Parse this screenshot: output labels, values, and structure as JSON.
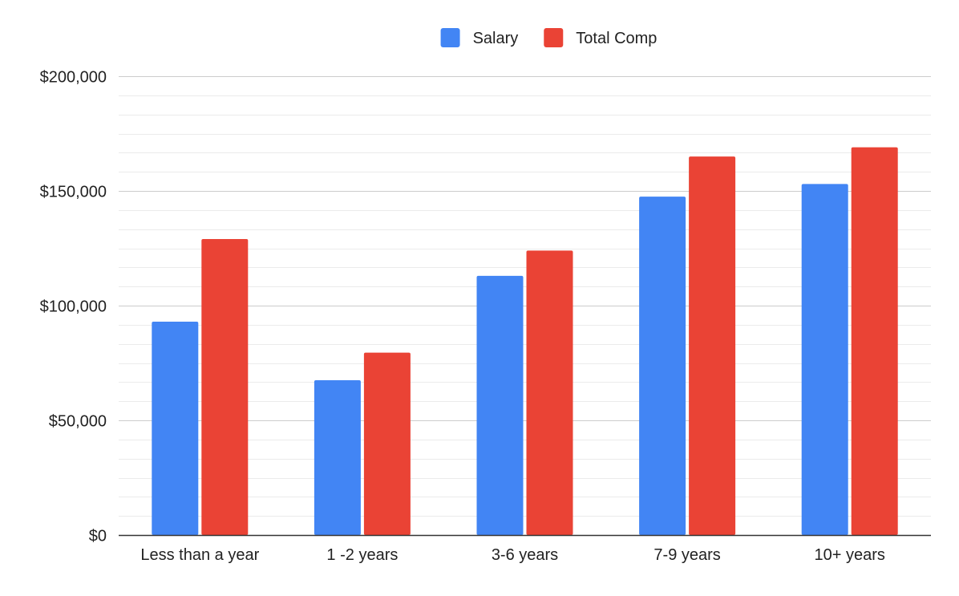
{
  "chart_data": {
    "type": "bar",
    "title": "",
    "xlabel": "",
    "ylabel": "",
    "categories": [
      "Less than a year",
      "1 -2 years",
      "3-6 years",
      "7-9 years",
      "10+ years"
    ],
    "series": [
      {
        "name": "Salary",
        "color": "#4285F4",
        "values": [
          93000,
          67500,
          113000,
          147500,
          153000
        ]
      },
      {
        "name": "Total Comp",
        "color": "#EA4335",
        "values": [
          129000,
          79500,
          124000,
          165000,
          169000
        ]
      }
    ],
    "ylim": [
      0,
      200000
    ],
    "y_ticks": [
      {
        "value": 0,
        "label": "$0"
      },
      {
        "value": 50000,
        "label": "$50,000"
      },
      {
        "value": 100000,
        "label": "$100,000"
      },
      {
        "value": 150000,
        "label": "$150,000"
      },
      {
        "value": 200000,
        "label": "$200,000"
      }
    ],
    "minor_grid_step": 8333.33,
    "grid": true,
    "legend_position": "top-center"
  }
}
